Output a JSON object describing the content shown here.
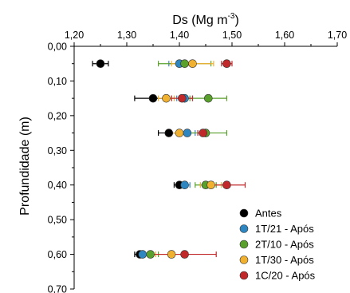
{
  "chart_data": {
    "type": "scatter",
    "xlabel": "Ds (Mg m",
    "xlabel_sup": "-3",
    "xlabel_close": ")",
    "ylabel": "Profundidade (m)",
    "xlim": [
      1.2,
      1.7
    ],
    "ylim": [
      0.0,
      0.7
    ],
    "x_ticks": [
      "1,20",
      "1,30",
      "1,40",
      "1,50",
      "1,60",
      "1,70"
    ],
    "y_ticks": [
      "0,00",
      "0,10",
      "0,20",
      "0,30",
      "0,40",
      "0,50",
      "0,60",
      "0,70"
    ],
    "x_axis_position": "top",
    "y_axis_inverted": true,
    "grid": false,
    "legend_position": "bottom-right",
    "series": [
      {
        "name": "Antes",
        "color": "#000000",
        "points": [
          {
            "depth": 0.05,
            "ds": 1.25,
            "err": 0.015
          },
          {
            "depth": 0.15,
            "ds": 1.35,
            "err": 0.035
          },
          {
            "depth": 0.25,
            "ds": 1.38,
            "err": 0.02
          },
          {
            "depth": 0.4,
            "ds": 1.4,
            "err": 0.01
          },
          {
            "depth": 0.6,
            "ds": 1.325,
            "err": 0.01
          }
        ]
      },
      {
        "name": "1T/21 - Após",
        "color": "#2e86c1",
        "points": [
          {
            "depth": 0.05,
            "ds": 1.4,
            "err": 0.02
          },
          {
            "depth": 0.15,
            "ds": 1.41,
            "err": 0.015
          },
          {
            "depth": 0.25,
            "ds": 1.415,
            "err": 0.015
          },
          {
            "depth": 0.4,
            "ds": 1.41,
            "err": 0.01
          },
          {
            "depth": 0.6,
            "ds": 1.33,
            "err": 0.01
          }
        ]
      },
      {
        "name": "2T/10 - Após",
        "color": "#5aa02c",
        "points": [
          {
            "depth": 0.05,
            "ds": 1.41,
            "err": 0.05
          },
          {
            "depth": 0.15,
            "ds": 1.455,
            "err": 0.035
          },
          {
            "depth": 0.25,
            "ds": 1.45,
            "err": 0.04
          },
          {
            "depth": 0.4,
            "ds": 1.45,
            "err": 0.02
          },
          {
            "depth": 0.6,
            "ds": 1.345,
            "err": 0.015
          }
        ]
      },
      {
        "name": "1T/30 - Após",
        "color": "#f0b030",
        "points": [
          {
            "depth": 0.05,
            "ds": 1.425,
            "err": 0.04
          },
          {
            "depth": 0.15,
            "ds": 1.375,
            "err": 0.015
          },
          {
            "depth": 0.25,
            "ds": 1.4,
            "err": 0.015
          },
          {
            "depth": 0.4,
            "ds": 1.46,
            "err": 0.02
          },
          {
            "depth": 0.6,
            "ds": 1.385,
            "err": 0.03
          }
        ]
      },
      {
        "name": "1C/20 - Após",
        "color": "#c0282a",
        "points": [
          {
            "depth": 0.05,
            "ds": 1.49,
            "err": 0.01
          },
          {
            "depth": 0.15,
            "ds": 1.405,
            "err": 0.02
          },
          {
            "depth": 0.25,
            "ds": 1.445,
            "err": 0.01
          },
          {
            "depth": 0.4,
            "ds": 1.49,
            "err": 0.035
          },
          {
            "depth": 0.6,
            "ds": 1.41,
            "err": 0.06
          }
        ]
      }
    ]
  }
}
